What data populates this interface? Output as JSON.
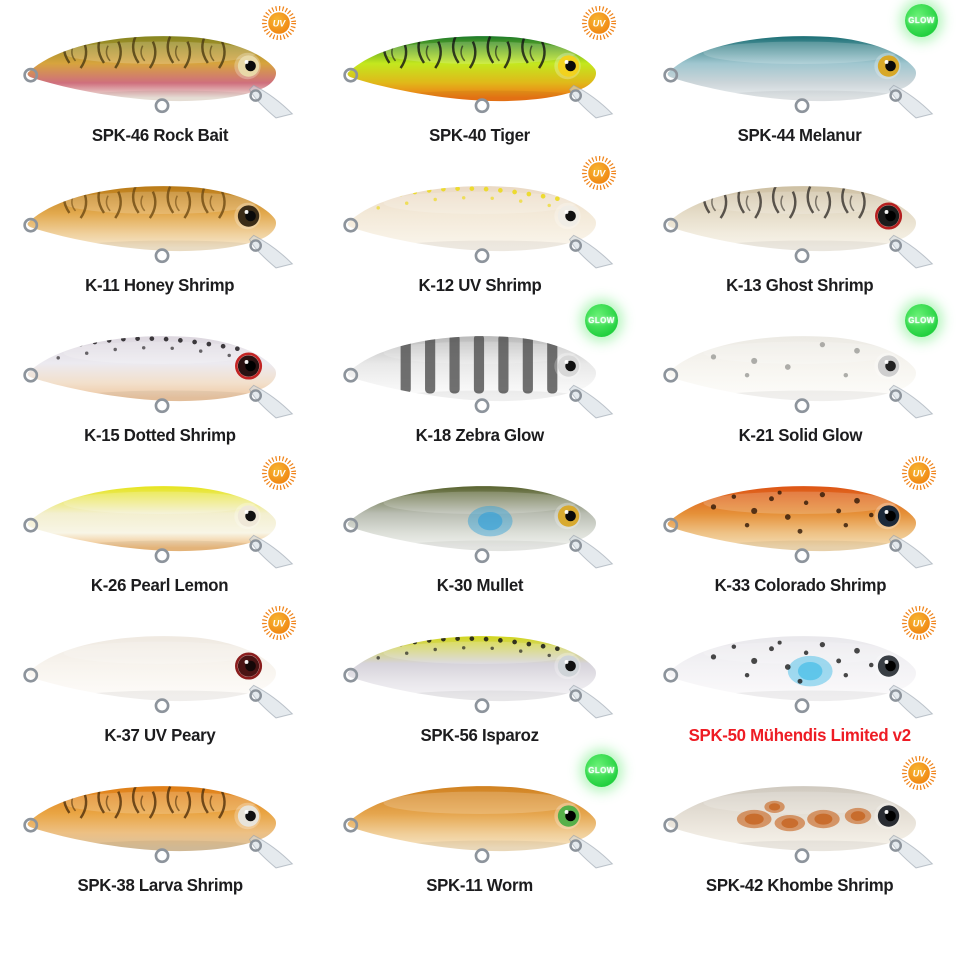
{
  "page": {
    "background": "#ffffff",
    "label_default_color": "#1c1c1e"
  },
  "badges": {
    "uv_label": "UV",
    "glow_label": "GLOW",
    "uv_color": "#ef7d0e",
    "uv_color_light": "#f7b733",
    "glow_color": "#22d03f"
  },
  "products": [
    {
      "label": "SPK-46 Rock Bait",
      "badge": "uv",
      "label_color": null,
      "colors": {
        "back": "#85851f",
        "side": "#d7a43e",
        "lower": "#cf6f7d",
        "belly": "#f2e9e0"
      },
      "pattern": {
        "type": "stripes",
        "color": "#4a3a10"
      },
      "accent": null,
      "eye": {
        "iris": "#e8d9a8",
        "pupil": "#0a0a0a",
        "ring": null
      }
    },
    {
      "label": "SPK-40 Tiger",
      "badge": "uv",
      "label_color": null,
      "colors": {
        "back": "#1c7a2a",
        "side": "#c3e81e",
        "lower": "#e0b81a",
        "belly": "#ef7716"
      },
      "pattern": {
        "type": "stripes",
        "color": "#121212"
      },
      "accent": null,
      "eye": {
        "iris": "#f2d21e",
        "pupil": "#0a0a0a",
        "ring": null
      }
    },
    {
      "label": "SPK-44 Melanur",
      "badge": "glow",
      "label_color": null,
      "colors": {
        "back": "#1b6f75",
        "side": "#9fc6cf",
        "lower": "#ccd5d9",
        "belly": "#e9edef"
      },
      "pattern": {
        "type": "none",
        "color": "#000000"
      },
      "accent": null,
      "eye": {
        "iris": "#d8a828",
        "pupil": "#0a0a0a",
        "ring": null
      }
    },
    {
      "label": "K-11 Honey Shrimp",
      "badge": null,
      "label_color": null,
      "colors": {
        "back": "#b97a16",
        "side": "#e2a94e",
        "lower": "#efcf9a",
        "belly": "#f6e7cd"
      },
      "pattern": {
        "type": "stripes",
        "color": "#6e4a12"
      },
      "accent": null,
      "eye": {
        "iris": "#3a2c18",
        "pupil": "#0a0a0a",
        "ring": null
      }
    },
    {
      "label": "K-12 UV Shrimp",
      "badge": "uv",
      "label_color": null,
      "colors": {
        "back": "#ead9c4",
        "side": "#f3e9d8",
        "lower": "#f7f0e3",
        "belly": "#faf5ec"
      },
      "pattern": {
        "type": "dots",
        "color": "#ecd915"
      },
      "accent": null,
      "eye": {
        "iris": "#f0ede6",
        "pupil": "#111111",
        "ring": null
      }
    },
    {
      "label": "K-13 Ghost Shrimp",
      "badge": null,
      "label_color": null,
      "colors": {
        "back": "#cdbfa2",
        "side": "#e5dcc8",
        "lower": "#f1ebdd",
        "belly": "#f7f3ea"
      },
      "pattern": {
        "type": "stripes",
        "color": "#35302a"
      },
      "accent": null,
      "eye": {
        "iris": "#1c1c1c",
        "pupil": "#000000",
        "ring": "#b51f1f"
      }
    },
    {
      "label": "K-15 Dotted Shrimp",
      "badge": null,
      "label_color": null,
      "colors": {
        "back": "#dcd6de",
        "side": "#eceaf0",
        "lower": "#f2e0cc",
        "belly": "#efc9a4"
      },
      "pattern": {
        "type": "dots",
        "color": "#1f1b1f"
      },
      "accent": null,
      "eye": {
        "iris": "#2a1212",
        "pupil": "#000000",
        "ring": "#c22424"
      }
    },
    {
      "label": "K-18 Zebra Glow",
      "badge": "glow",
      "label_color": null,
      "colors": {
        "back": "#b9b9b9",
        "side": "#e8e8e8",
        "lower": "#f4f4f4",
        "belly": "#fcfcfc"
      },
      "pattern": {
        "type": "zebra",
        "color": "#4e4e4e"
      },
      "accent": null,
      "eye": {
        "iris": "#d8d8d8",
        "pupil": "#111111",
        "ring": null
      }
    },
    {
      "label": "K-21 Solid Glow",
      "badge": "glow",
      "label_color": null,
      "colors": {
        "back": "#eceae4",
        "side": "#f6f4ef",
        "lower": "#faf9f5",
        "belly": "#fdfcfa"
      },
      "pattern": {
        "type": "spots",
        "color": "#9a9a96",
        "sparse": true
      },
      "accent": null,
      "eye": {
        "iris": "#cfcfcf",
        "pupil": "#222222",
        "ring": null
      }
    },
    {
      "label": "K-26 Pearl Lemon",
      "badge": "uv",
      "label_color": null,
      "colors": {
        "back": "#e6e41c",
        "side": "#f3efcf",
        "lower": "#f8f5e6",
        "belly": "#f0bd80"
      },
      "pattern": {
        "type": "none",
        "color": "#000000"
      },
      "accent": null,
      "eye": {
        "iris": "#efe8d8",
        "pupil": "#111111",
        "ring": null
      }
    },
    {
      "label": "K-30 Mullet",
      "badge": null,
      "label_color": null,
      "colors": {
        "back": "#59632e",
        "side": "#b9bdb2",
        "lower": "#dcdfd8",
        "belly": "#f0f1ee"
      },
      "pattern": {
        "type": "none",
        "color": "#000000"
      },
      "accent": "#2f9fd8",
      "eye": {
        "iris": "#d8aa30",
        "pupil": "#0a0a0a",
        "ring": null
      }
    },
    {
      "label": "K-33 Colorado Shrimp",
      "badge": "uv",
      "label_color": null,
      "colors": {
        "back": "#dd5414",
        "side": "#e59038",
        "lower": "#eec285",
        "belly": "#f4dcb4"
      },
      "pattern": {
        "type": "spots",
        "color": "#2e1606"
      },
      "accent": null,
      "eye": {
        "iris": "#1c2a3a",
        "pupil": "#000000",
        "ring": null
      }
    },
    {
      "label": "K-37 UV Peary",
      "badge": "uv",
      "label_color": null,
      "colors": {
        "back": "#efe9e1",
        "side": "#f7f3ed",
        "lower": "#fbf8f4",
        "belly": "#fdfbf9"
      },
      "pattern": {
        "type": "none",
        "color": "#000000"
      },
      "accent": null,
      "eye": {
        "iris": "#4a1414",
        "pupil": "#150808",
        "ring": "#8a1d1d"
      }
    },
    {
      "label": "SPK-56 Isparoz",
      "badge": null,
      "label_color": null,
      "colors": {
        "back": "#d2d61c",
        "side": "#d6d3da",
        "lower": "#e9e7ec",
        "belly": "#f4f3f5"
      },
      "pattern": {
        "type": "dots",
        "color": "#151515"
      },
      "accent": null,
      "eye": {
        "iris": "#cfd4d8",
        "pupil": "#111111",
        "ring": null
      }
    },
    {
      "label": "SPK-50 Mühendis Limited v2",
      "badge": "uv",
      "label_color": "#ee1c24",
      "colors": {
        "back": "#e9e8ec",
        "side": "#f2f1f4",
        "lower": "#f7f6f8",
        "belly": "#fbfafb"
      },
      "pattern": {
        "type": "spots",
        "color": "#1c1c1c"
      },
      "accent": "#35b9e6",
      "eye": {
        "iris": "#3a3f45",
        "pupil": "#000000",
        "ring": null
      }
    },
    {
      "label": "SPK-38 Larva Shrimp",
      "badge": null,
      "label_color": null,
      "colors": {
        "back": "#df7d15",
        "side": "#e9a544",
        "lower": "#edc084",
        "belly": "#dcc29c"
      },
      "pattern": {
        "type": "stripes",
        "color": "#50300a"
      },
      "accent": null,
      "eye": {
        "iris": "#e8e4da",
        "pupil": "#111111",
        "ring": null
      }
    },
    {
      "label": "SPK-11 Worm",
      "badge": "glow",
      "label_color": null,
      "colors": {
        "back": "#d08120",
        "side": "#e5a54d",
        "lower": "#f0cd96",
        "belly": "#f6e3c2"
      },
      "pattern": {
        "type": "none",
        "color": "#000000"
      },
      "accent": null,
      "eye": {
        "iris": "#56b04a",
        "pupil": "#000000",
        "ring": null
      }
    },
    {
      "label": "SPK-42 Khombe Shrimp",
      "badge": "uv",
      "label_color": null,
      "colors": {
        "back": "#cfc9bf",
        "side": "#e4ded4",
        "lower": "#efeae1",
        "belly": "#f6f2ea"
      },
      "pattern": {
        "type": "blobs",
        "color": "#c25408"
      },
      "accent": null,
      "eye": {
        "iris": "#2a2d33",
        "pupil": "#000000",
        "ring": null
      }
    }
  ]
}
